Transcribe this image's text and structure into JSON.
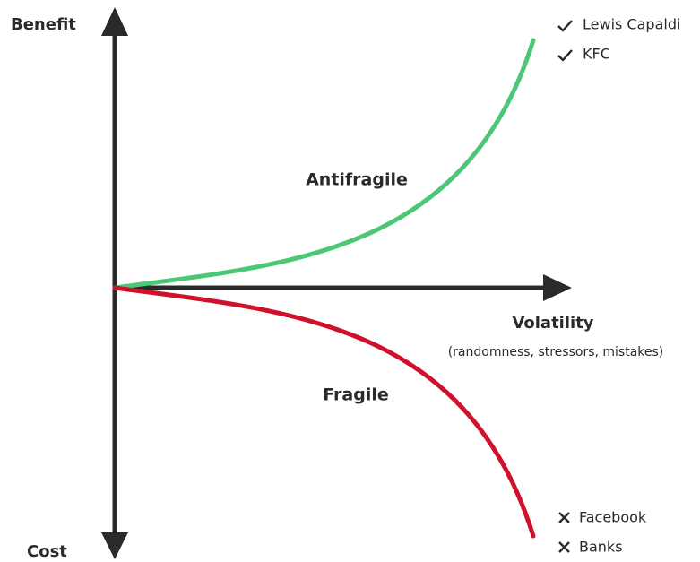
{
  "axes": {
    "y_top": "Benefit",
    "y_bottom": "Cost",
    "x": "Volatility",
    "x_note": "(randomness, stressors, mistakes)"
  },
  "curves": [
    {
      "label": "Antifragile",
      "examples": [
        "Lewis Capaldi",
        "KFC"
      ]
    },
    {
      "label": "Fragile",
      "examples": [
        "Facebook",
        "Banks"
      ]
    }
  ]
}
